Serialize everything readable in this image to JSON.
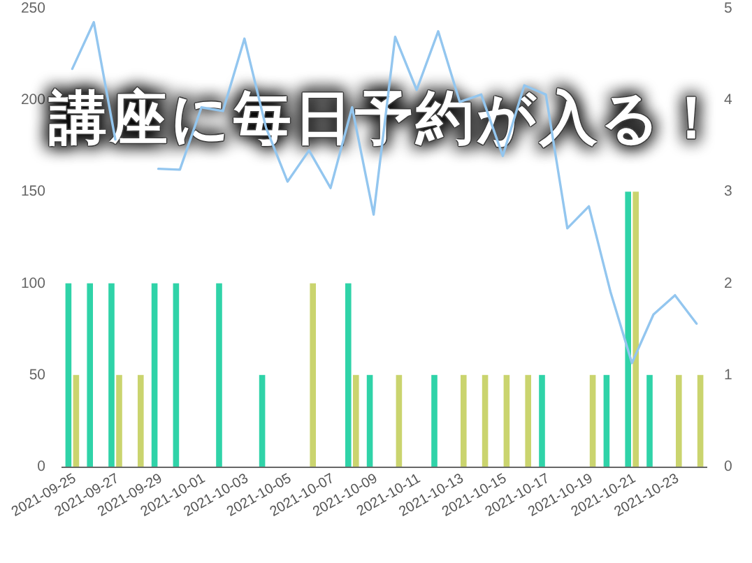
{
  "chart_data": {
    "type": "bar",
    "title": "講座に毎日予約が入る！",
    "categories": [
      "2021-09-25",
      null,
      "2021-09-27",
      null,
      "2021-09-29",
      null,
      "2021-10-01",
      null,
      "2021-10-03",
      null,
      "2021-10-05",
      null,
      "2021-10-07",
      null,
      "2021-10-09",
      null,
      "2021-10-11",
      null,
      "2021-10-13",
      null,
      "2021-10-15",
      null,
      "2021-10-17",
      null,
      "2021-10-19",
      null,
      "2021-10-21",
      null,
      "2021-10-23",
      null
    ],
    "series": [
      {
        "color": "#2fd3a8",
        "values": [
          100,
          100,
          100,
          0,
          100,
          100,
          0,
          100,
          0,
          50,
          0,
          0,
          0,
          100,
          50,
          0,
          0,
          50,
          0,
          0,
          0,
          0,
          50,
          0,
          0,
          50,
          150,
          50,
          0,
          0
        ]
      },
      {
        "color": "#cad46e",
        "values": [
          50,
          0,
          50,
          50,
          0,
          0,
          0,
          0,
          0,
          0,
          0,
          100,
          0,
          50,
          0,
          50,
          0,
          0,
          50,
          50,
          50,
          50,
          0,
          0,
          50,
          0,
          150,
          0,
          50,
          50
        ]
      },
      {
        "type": "line",
        "axis": "y2",
        "color": "#93c6ef",
        "values": [
          4.34,
          4.85,
          3.57,
          null,
          3.25,
          3.24,
          3.92,
          3.88,
          4.67,
          3.7,
          3.11,
          3.45,
          3.04,
          3.92,
          2.75,
          4.69,
          4.11,
          4.75,
          3.98,
          4.06,
          3.39,
          4.16,
          4.06,
          2.6,
          2.84,
          1.91,
          1.13,
          1.66,
          1.87,
          1.56
        ]
      }
    ],
    "ylim": [
      0,
      250
    ],
    "yticks": [
      0,
      50,
      100,
      150,
      200,
      250
    ],
    "y2lim": [
      0,
      5
    ],
    "y2ticks": [
      0,
      1,
      2,
      3,
      4,
      5
    ]
  }
}
